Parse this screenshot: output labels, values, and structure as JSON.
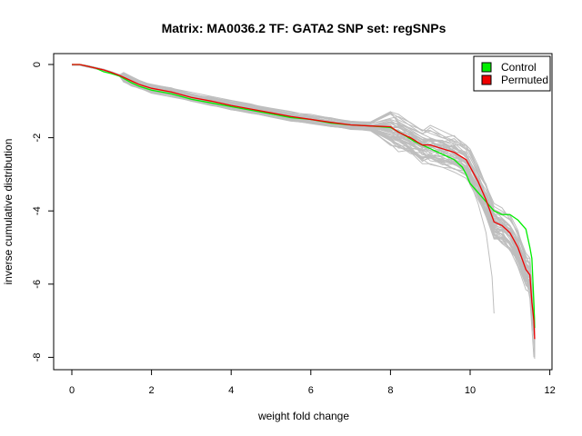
{
  "chart_data": {
    "type": "line",
    "title": "Matrix: MA0036.2 TF: GATA2 SNP set: regSNPs",
    "xlabel": "weight fold change",
    "ylabel": "inverse cumulative distribution",
    "xlim": [
      0,
      12
    ],
    "ylim": [
      -8,
      0
    ],
    "x_ticks": [
      0,
      2,
      4,
      6,
      8,
      10,
      12
    ],
    "y_ticks": [
      0,
      -2,
      -4,
      -6,
      -8
    ],
    "grid": false,
    "legend_position": "top-right",
    "background_series_color": "#bebebe",
    "series": [
      {
        "name": "Control",
        "color": "#00ee00",
        "x": [
          0,
          0.2,
          0.4,
          0.6,
          0.8,
          1.0,
          1.2,
          1.3,
          1.5,
          1.7,
          2.0,
          2.5,
          3.0,
          3.5,
          4.0,
          4.5,
          5.0,
          5.5,
          6.0,
          6.5,
          7.0,
          7.5,
          8.0,
          8.3,
          8.6,
          9.0,
          9.3,
          9.6,
          9.8,
          9.9,
          10.0,
          10.2,
          10.4,
          10.6,
          10.8,
          11.0,
          11.2,
          11.4,
          11.5,
          11.55,
          11.6,
          11.62
        ],
        "y": [
          0,
          0,
          -0.05,
          -0.1,
          -0.2,
          -0.25,
          -0.32,
          -0.38,
          -0.5,
          -0.6,
          -0.7,
          -0.8,
          -0.95,
          -1.05,
          -1.15,
          -1.25,
          -1.35,
          -1.45,
          -1.5,
          -1.6,
          -1.65,
          -1.68,
          -1.72,
          -1.9,
          -2.1,
          -2.3,
          -2.45,
          -2.6,
          -2.8,
          -3.0,
          -3.25,
          -3.5,
          -3.75,
          -4.0,
          -4.1,
          -4.1,
          -4.25,
          -4.5,
          -5.0,
          -5.3,
          -6.5,
          -7.2
        ]
      },
      {
        "name": "Permuted",
        "color": "#ee0000",
        "x": [
          0,
          0.2,
          0.4,
          0.6,
          0.8,
          1.0,
          1.2,
          1.3,
          1.5,
          1.7,
          2.0,
          2.5,
          3.0,
          3.5,
          4.0,
          4.5,
          5.0,
          5.5,
          6.0,
          6.5,
          7.0,
          7.5,
          8.0,
          8.2,
          8.5,
          8.8,
          9.0,
          9.3,
          9.6,
          9.9,
          10.0,
          10.2,
          10.4,
          10.6,
          10.8,
          11.0,
          11.2,
          11.4,
          11.5,
          11.55,
          11.6,
          11.62
        ],
        "y": [
          0,
          0,
          -0.05,
          -0.1,
          -0.15,
          -0.22,
          -0.3,
          -0.35,
          -0.45,
          -0.55,
          -0.65,
          -0.75,
          -0.9,
          -1.0,
          -1.12,
          -1.22,
          -1.32,
          -1.42,
          -1.5,
          -1.58,
          -1.65,
          -1.68,
          -1.7,
          -1.85,
          -2.0,
          -2.2,
          -2.2,
          -2.3,
          -2.4,
          -2.6,
          -2.8,
          -3.2,
          -3.7,
          -4.3,
          -4.4,
          -4.6,
          -5.0,
          -5.6,
          -5.75,
          -6.5,
          -7.0,
          -7.5
        ]
      }
    ]
  }
}
